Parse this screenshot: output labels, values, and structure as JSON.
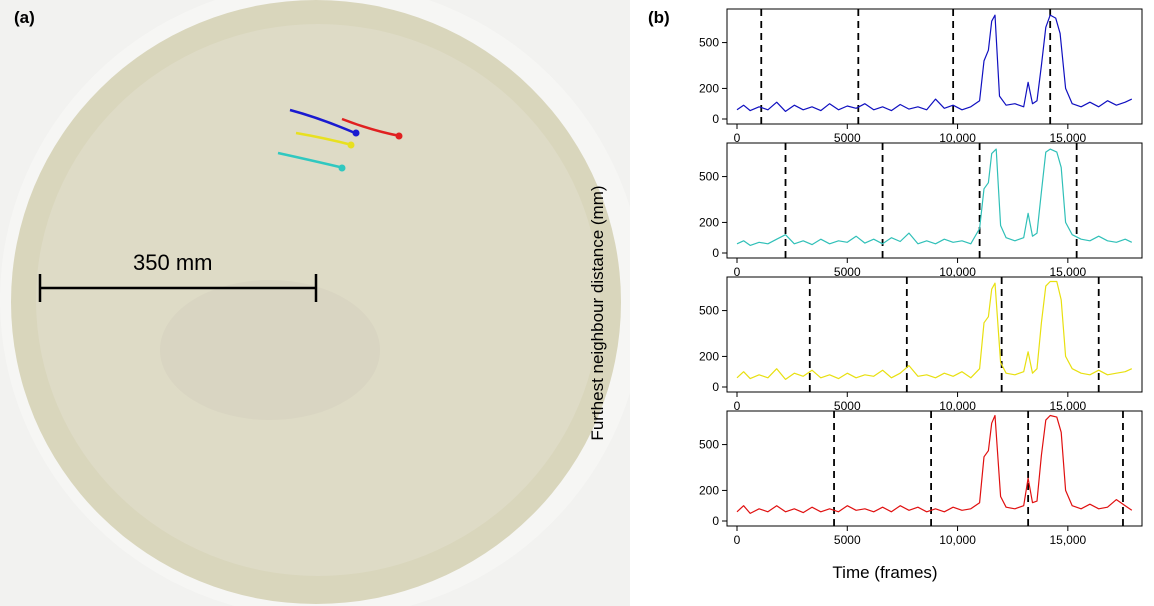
{
  "figure": {
    "panel_a_label": "(a)",
    "panel_b_label": "(b)",
    "scale_bar_label": "350 mm"
  },
  "photo": {
    "track_colors": [
      "#1a1ad0",
      "#e02020",
      "#e8e020",
      "#30c8c0"
    ]
  },
  "chart_data": {
    "type": "line",
    "xlabel": "Time (frames)",
    "ylabel": "Furthest neighbour distance (mm)",
    "xlim": [
      0,
      18000
    ],
    "ylim": [
      0,
      700
    ],
    "xticks": [
      0,
      5000,
      10000,
      15000
    ],
    "xtick_labels": [
      "0",
      "5000",
      "10,000",
      "15,000"
    ],
    "yticks": [
      0,
      200,
      500
    ],
    "ytick_labels": [
      "0",
      "200",
      "500"
    ],
    "panels": [
      {
        "color": "#1010c0",
        "dashed_lines": [
          1100,
          5500,
          9800,
          14200
        ],
        "points": [
          [
            0,
            60
          ],
          [
            300,
            90
          ],
          [
            600,
            55
          ],
          [
            1000,
            80
          ],
          [
            1400,
            60
          ],
          [
            1800,
            110
          ],
          [
            2200,
            50
          ],
          [
            2600,
            90
          ],
          [
            3000,
            60
          ],
          [
            3400,
            80
          ],
          [
            3800,
            55
          ],
          [
            4200,
            100
          ],
          [
            4600,
            60
          ],
          [
            5000,
            85
          ],
          [
            5400,
            70
          ],
          [
            5800,
            100
          ],
          [
            6200,
            60
          ],
          [
            6600,
            80
          ],
          [
            7000,
            55
          ],
          [
            7400,
            95
          ],
          [
            7800,
            65
          ],
          [
            8200,
            80
          ],
          [
            8600,
            60
          ],
          [
            9000,
            130
          ],
          [
            9400,
            70
          ],
          [
            9800,
            90
          ],
          [
            10200,
            60
          ],
          [
            10600,
            80
          ],
          [
            11000,
            120
          ],
          [
            11200,
            380
          ],
          [
            11400,
            450
          ],
          [
            11550,
            640
          ],
          [
            11700,
            680
          ],
          [
            11900,
            150
          ],
          [
            12200,
            90
          ],
          [
            12600,
            100
          ],
          [
            13000,
            80
          ],
          [
            13200,
            240
          ],
          [
            13400,
            100
          ],
          [
            13600,
            120
          ],
          [
            13800,
            350
          ],
          [
            14000,
            600
          ],
          [
            14200,
            680
          ],
          [
            14450,
            660
          ],
          [
            14650,
            560
          ],
          [
            14900,
            200
          ],
          [
            15200,
            100
          ],
          [
            15600,
            80
          ],
          [
            16000,
            110
          ],
          [
            16400,
            80
          ],
          [
            16800,
            120
          ],
          [
            17200,
            90
          ],
          [
            17600,
            110
          ],
          [
            17900,
            130
          ]
        ]
      },
      {
        "color": "#30c0b8",
        "dashed_lines": [
          2200,
          6600,
          11000,
          15400
        ],
        "points": [
          [
            0,
            60
          ],
          [
            300,
            80
          ],
          [
            600,
            50
          ],
          [
            1000,
            70
          ],
          [
            1400,
            60
          ],
          [
            1800,
            90
          ],
          [
            2200,
            120
          ],
          [
            2600,
            60
          ],
          [
            3000,
            80
          ],
          [
            3400,
            55
          ],
          [
            3800,
            90
          ],
          [
            4200,
            60
          ],
          [
            4600,
            80
          ],
          [
            5000,
            70
          ],
          [
            5400,
            110
          ],
          [
            5800,
            65
          ],
          [
            6200,
            90
          ],
          [
            6600,
            60
          ],
          [
            7000,
            100
          ],
          [
            7400,
            75
          ],
          [
            7800,
            130
          ],
          [
            8200,
            60
          ],
          [
            8600,
            80
          ],
          [
            9000,
            60
          ],
          [
            9400,
            90
          ],
          [
            9800,
            70
          ],
          [
            10200,
            80
          ],
          [
            10600,
            60
          ],
          [
            11000,
            160
          ],
          [
            11200,
            420
          ],
          [
            11400,
            460
          ],
          [
            11550,
            650
          ],
          [
            11750,
            680
          ],
          [
            11950,
            180
          ],
          [
            12200,
            100
          ],
          [
            12600,
            80
          ],
          [
            13000,
            100
          ],
          [
            13200,
            260
          ],
          [
            13400,
            110
          ],
          [
            13600,
            130
          ],
          [
            13800,
            400
          ],
          [
            14000,
            660
          ],
          [
            14200,
            680
          ],
          [
            14500,
            660
          ],
          [
            14700,
            560
          ],
          [
            14900,
            200
          ],
          [
            15200,
            120
          ],
          [
            15600,
            90
          ],
          [
            16000,
            80
          ],
          [
            16400,
            110
          ],
          [
            16800,
            80
          ],
          [
            17200,
            70
          ],
          [
            17600,
            90
          ],
          [
            17900,
            70
          ]
        ]
      },
      {
        "color": "#e8e010",
        "dashed_lines": [
          3300,
          7700,
          12000,
          16400
        ],
        "points": [
          [
            0,
            60
          ],
          [
            300,
            100
          ],
          [
            600,
            55
          ],
          [
            1000,
            80
          ],
          [
            1400,
            60
          ],
          [
            1800,
            120
          ],
          [
            2200,
            50
          ],
          [
            2600,
            90
          ],
          [
            3000,
            70
          ],
          [
            3400,
            110
          ],
          [
            3800,
            60
          ],
          [
            4200,
            80
          ],
          [
            4600,
            55
          ],
          [
            5000,
            90
          ],
          [
            5400,
            60
          ],
          [
            5800,
            80
          ],
          [
            6200,
            70
          ],
          [
            6600,
            110
          ],
          [
            7000,
            60
          ],
          [
            7400,
            90
          ],
          [
            7800,
            140
          ],
          [
            8200,
            70
          ],
          [
            8600,
            80
          ],
          [
            9000,
            60
          ],
          [
            9400,
            90
          ],
          [
            9800,
            70
          ],
          [
            10200,
            100
          ],
          [
            10600,
            60
          ],
          [
            11000,
            120
          ],
          [
            11200,
            420
          ],
          [
            11400,
            460
          ],
          [
            11550,
            640
          ],
          [
            11700,
            680
          ],
          [
            11950,
            160
          ],
          [
            12200,
            90
          ],
          [
            12600,
            80
          ],
          [
            13000,
            100
          ],
          [
            13200,
            230
          ],
          [
            13400,
            90
          ],
          [
            13600,
            120
          ],
          [
            13800,
            420
          ],
          [
            14000,
            660
          ],
          [
            14200,
            690
          ],
          [
            14500,
            690
          ],
          [
            14700,
            570
          ],
          [
            14900,
            200
          ],
          [
            15200,
            120
          ],
          [
            15600,
            90
          ],
          [
            16000,
            80
          ],
          [
            16400,
            110
          ],
          [
            16800,
            80
          ],
          [
            17200,
            90
          ],
          [
            17600,
            100
          ],
          [
            17900,
            120
          ]
        ]
      },
      {
        "color": "#e01010",
        "dashed_lines": [
          4400,
          8800,
          13200,
          17500
        ],
        "points": [
          [
            0,
            60
          ],
          [
            300,
            100
          ],
          [
            600,
            50
          ],
          [
            1000,
            80
          ],
          [
            1400,
            60
          ],
          [
            1800,
            100
          ],
          [
            2200,
            60
          ],
          [
            2600,
            80
          ],
          [
            3000,
            55
          ],
          [
            3400,
            90
          ],
          [
            3800,
            60
          ],
          [
            4200,
            80
          ],
          [
            4600,
            60
          ],
          [
            5000,
            100
          ],
          [
            5400,
            70
          ],
          [
            5800,
            80
          ],
          [
            6200,
            60
          ],
          [
            6600,
            90
          ],
          [
            7000,
            60
          ],
          [
            7400,
            100
          ],
          [
            7800,
            70
          ],
          [
            8200,
            90
          ],
          [
            8600,
            60
          ],
          [
            9000,
            80
          ],
          [
            9400,
            60
          ],
          [
            9800,
            90
          ],
          [
            10200,
            70
          ],
          [
            10600,
            80
          ],
          [
            11000,
            120
          ],
          [
            11200,
            420
          ],
          [
            11400,
            460
          ],
          [
            11550,
            640
          ],
          [
            11700,
            690
          ],
          [
            11950,
            160
          ],
          [
            12200,
            90
          ],
          [
            12600,
            80
          ],
          [
            13000,
            100
          ],
          [
            13200,
            280
          ],
          [
            13400,
            120
          ],
          [
            13600,
            130
          ],
          [
            13800,
            430
          ],
          [
            14000,
            660
          ],
          [
            14200,
            690
          ],
          [
            14500,
            680
          ],
          [
            14700,
            580
          ],
          [
            14900,
            200
          ],
          [
            15200,
            100
          ],
          [
            15600,
            80
          ],
          [
            16000,
            110
          ],
          [
            16400,
            80
          ],
          [
            16800,
            90
          ],
          [
            17200,
            140
          ],
          [
            17600,
            100
          ],
          [
            17900,
            70
          ]
        ]
      }
    ]
  }
}
